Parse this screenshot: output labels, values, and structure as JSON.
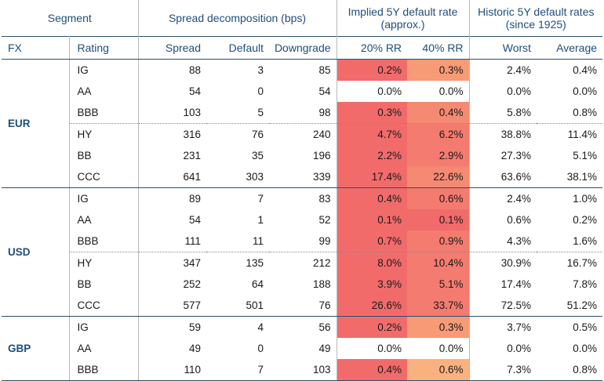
{
  "headers": {
    "segment": "Segment",
    "spread_decomposition": "Spread decomposition (bps)",
    "implied_default": "Implied 5Y default rate (approx.)",
    "historic_default": "Historic 5Y default rates (since 1925)",
    "fx": "FX",
    "rating": "Rating",
    "spread": "Spread",
    "default": "Default",
    "downgrade": "Downgrade",
    "rr20": "20% RR",
    "rr40": "40% RR",
    "worst": "Worst",
    "average": "Average"
  },
  "colors": {
    "header_text": "#1f4e79",
    "rule": "#2b4f72",
    "heat_high": "#f26b6b",
    "heat_mid": "#f79a76",
    "heat_low": "#f9b27f",
    "heat_zero": "#ffffff"
  },
  "groups": [
    {
      "fx": "EUR",
      "rows": [
        {
          "rating": "IG",
          "spread": "88",
          "default": "3",
          "downgrade": "85",
          "rr20": "0.2%",
          "rr40": "0.3%",
          "worst": "2.4%",
          "average": "0.4%",
          "c20": "#f26b6b",
          "c40": "#f79a76"
        },
        {
          "rating": "AA",
          "spread": "54",
          "default": "0",
          "downgrade": "54",
          "rr20": "0.0%",
          "rr40": "0.0%",
          "worst": "0.0%",
          "average": "0.0%",
          "c20": "#ffffff",
          "c40": "#ffffff"
        },
        {
          "rating": "BBB",
          "spread": "103",
          "default": "5",
          "downgrade": "98",
          "rr20": "0.3%",
          "rr40": "0.4%",
          "worst": "5.8%",
          "average": "0.8%",
          "c20": "#f26b6b",
          "c40": "#f58a72"
        },
        {
          "rating": "HY",
          "spread": "316",
          "default": "76",
          "downgrade": "240",
          "rr20": "4.7%",
          "rr40": "6.2%",
          "worst": "38.8%",
          "average": "11.4%",
          "c20": "#f26b6b",
          "c40": "#f47b6f"
        },
        {
          "rating": "BB",
          "spread": "231",
          "default": "35",
          "downgrade": "196",
          "rr20": "2.2%",
          "rr40": "2.9%",
          "worst": "27.3%",
          "average": "5.1%",
          "c20": "#f26b6b",
          "c40": "#f47b6f"
        },
        {
          "rating": "CCC",
          "spread": "641",
          "default": "303",
          "downgrade": "339",
          "rr20": "17.4%",
          "rr40": "22.6%",
          "worst": "63.6%",
          "average": "38.1%",
          "c20": "#f26b6b",
          "c40": "#f58a72"
        }
      ]
    },
    {
      "fx": "USD",
      "rows": [
        {
          "rating": "IG",
          "spread": "89",
          "default": "7",
          "downgrade": "83",
          "rr20": "0.4%",
          "rr40": "0.6%",
          "worst": "2.4%",
          "average": "1.0%",
          "c20": "#f26b6b",
          "c40": "#f47b6f"
        },
        {
          "rating": "AA",
          "spread": "54",
          "default": "1",
          "downgrade": "52",
          "rr20": "0.1%",
          "rr40": "0.1%",
          "worst": "0.6%",
          "average": "0.2%",
          "c20": "#f26b6b",
          "c40": "#f26b6b"
        },
        {
          "rating": "BBB",
          "spread": "111",
          "default": "11",
          "downgrade": "99",
          "rr20": "0.7%",
          "rr40": "0.9%",
          "worst": "4.3%",
          "average": "1.6%",
          "c20": "#f26b6b",
          "c40": "#f47b6f"
        },
        {
          "rating": "HY",
          "spread": "347",
          "default": "135",
          "downgrade": "212",
          "rr20": "8.0%",
          "rr40": "10.4%",
          "worst": "30.9%",
          "average": "16.7%",
          "c20": "#f26b6b",
          "c40": "#f47b6f"
        },
        {
          "rating": "BB",
          "spread": "252",
          "default": "64",
          "downgrade": "188",
          "rr20": "3.9%",
          "rr40": "5.1%",
          "worst": "17.4%",
          "average": "7.8%",
          "c20": "#f26b6b",
          "c40": "#f47b6f"
        },
        {
          "rating": "CCC",
          "spread": "577",
          "default": "501",
          "downgrade": "76",
          "rr20": "26.6%",
          "rr40": "33.7%",
          "worst": "72.5%",
          "average": "51.2%",
          "c20": "#f26b6b",
          "c40": "#f47b6f"
        }
      ]
    },
    {
      "fx": "GBP",
      "rows": [
        {
          "rating": "IG",
          "spread": "59",
          "default": "4",
          "downgrade": "56",
          "rr20": "0.2%",
          "rr40": "0.3%",
          "worst": "3.7%",
          "average": "0.5%",
          "c20": "#f26b6b",
          "c40": "#f79a76"
        },
        {
          "rating": "AA",
          "spread": "49",
          "default": "0",
          "downgrade": "49",
          "rr20": "0.0%",
          "rr40": "0.0%",
          "worst": "0.0%",
          "average": "0.0%",
          "c20": "#ffffff",
          "c40": "#ffffff"
        },
        {
          "rating": "BBB",
          "spread": "110",
          "default": "7",
          "downgrade": "103",
          "rr20": "0.4%",
          "rr40": "0.6%",
          "worst": "7.3%",
          "average": "0.8%",
          "c20": "#f26b6b",
          "c40": "#f9b27f"
        }
      ]
    }
  ]
}
